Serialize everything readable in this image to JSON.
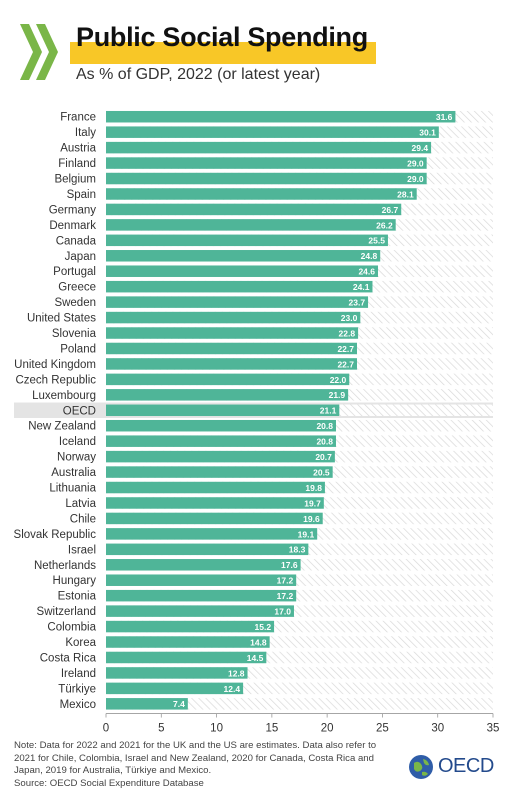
{
  "header": {
    "title": "Public Social Spending",
    "subtitle": "As % of GDP, 2022 (or latest year)"
  },
  "footer": {
    "note": "Note: Data for 2022 and 2021 for the UK and the US are estimates. Data also refer to 2021 for Chile, Colombia, Israel and New Zealand, 2020 for Canada, Costa Rica and Japan, 2019 for Australia, Türkiye and Mexico.",
    "source": "Source:  OECD Social Expenditure Database",
    "logo_text": "OECD"
  },
  "colors": {
    "bar": "#4fb598",
    "highlight_band": "#e4e4e4",
    "title_highlight": "#f8c727",
    "logo_green": "#7ab648",
    "oecd_blue": "#234a8c"
  },
  "chart_data": {
    "type": "bar",
    "orientation": "horizontal",
    "categories": [
      "France",
      "Italy",
      "Austria",
      "Finland",
      "Belgium",
      "Spain",
      "Germany",
      "Denmark",
      "Canada",
      "Japan",
      "Portugal",
      "Greece",
      "Sweden",
      "United States",
      "Slovenia",
      "Poland",
      "United Kingdom",
      "Czech Republic",
      "Luxembourg",
      "OECD",
      "New Zealand",
      "Iceland",
      "Norway",
      "Australia",
      "Lithuania",
      "Latvia",
      "Chile",
      "Slovak Republic",
      "Israel",
      "Netherlands",
      "Hungary",
      "Estonia",
      "Switzerland",
      "Colombia",
      "Korea",
      "Costa Rica",
      "Ireland",
      "Türkiye",
      "Mexico"
    ],
    "values": [
      31.6,
      30.1,
      29.4,
      29.0,
      29.0,
      28.1,
      26.7,
      26.2,
      25.5,
      24.8,
      24.6,
      24.1,
      23.7,
      23.0,
      22.8,
      22.7,
      22.7,
      22.0,
      21.9,
      21.1,
      20.8,
      20.8,
      20.7,
      20.5,
      19.8,
      19.7,
      19.6,
      19.1,
      18.3,
      17.6,
      17.2,
      17.2,
      17.0,
      15.2,
      14.8,
      14.5,
      12.8,
      12.4,
      7.4
    ],
    "value_labels": [
      "31.6",
      "30.1",
      "29.4",
      "29.0",
      "29.0",
      "28.1",
      "26.7",
      "26.2",
      "25.5",
      "24.8",
      "24.6",
      "24.1",
      "23.7",
      "23.0",
      "22.8",
      "22.7",
      "22.7",
      "22.0",
      "21.9",
      "21.1",
      "20.8",
      "20.8",
      "20.7",
      "20.5",
      "19.8",
      "19.7",
      "19.6",
      "19.1",
      "18.3",
      "17.6",
      "17.2",
      "17.2",
      "17.0",
      "15.2",
      "14.8",
      "14.5",
      "12.8",
      "12.4",
      "7.4"
    ],
    "highlight": "OECD",
    "xlim": [
      0,
      35
    ],
    "xticks": [
      "0",
      "5",
      "10",
      "15",
      "20",
      "25",
      "30",
      "35"
    ],
    "xlabel": "",
    "ylabel": "",
    "grid": false,
    "legend": "none"
  }
}
